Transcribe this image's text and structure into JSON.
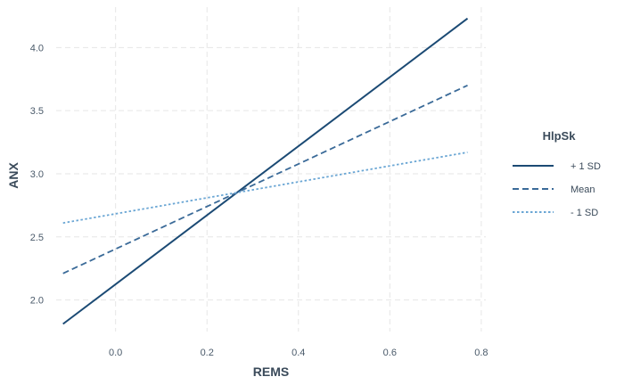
{
  "chart_data": {
    "type": "line",
    "xlabel": "REMS",
    "ylabel": "ANX",
    "xlim": [
      -0.13,
      0.81
    ],
    "ylim": [
      1.75,
      4.32
    ],
    "x_ticks": [
      0.0,
      0.2,
      0.4,
      0.6,
      0.8
    ],
    "x_tick_labels": [
      "0.0",
      "0.2",
      "0.4",
      "0.6",
      "0.8"
    ],
    "y_ticks": [
      2.0,
      2.5,
      3.0,
      3.5,
      4.0
    ],
    "y_tick_labels": [
      "2.0",
      "2.5",
      "3.0",
      "3.5",
      "4.0"
    ],
    "grid": true,
    "legend": {
      "title": "HlpSk",
      "placement": "right"
    },
    "series": [
      {
        "name": "+ 1 SD",
        "dash": "solid",
        "color": "#1b4a74",
        "x": [
          -0.115,
          0.77
        ],
        "y": [
          1.81,
          4.23
        ]
      },
      {
        "name": "Mean",
        "dash": "dashed",
        "color": "#3a6a98",
        "x": [
          -0.115,
          0.77
        ],
        "y": [
          2.21,
          3.7
        ]
      },
      {
        "name": "- 1 SD",
        "dash": "dotted",
        "color": "#6aa6d4",
        "x": [
          -0.115,
          0.77
        ],
        "y": [
          2.61,
          3.17
        ]
      }
    ]
  }
}
